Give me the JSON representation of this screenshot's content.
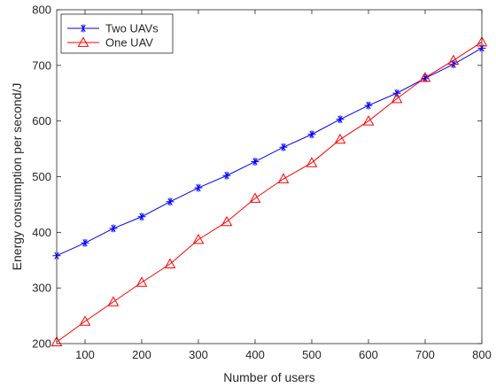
{
  "chart_data": {
    "type": "line",
    "xlabel": "Number of users",
    "ylabel": "Energy consumption per second/J",
    "xlim": [
      50,
      800
    ],
    "ylim": [
      200,
      800
    ],
    "xticks": [
      100,
      200,
      300,
      400,
      500,
      600,
      700,
      800
    ],
    "yticks": [
      200,
      300,
      400,
      500,
      600,
      700,
      800
    ],
    "grid": false,
    "legend_position": "top-left",
    "x": [
      50,
      100,
      150,
      200,
      250,
      300,
      350,
      400,
      450,
      500,
      550,
      600,
      650,
      700,
      750,
      800
    ],
    "series": [
      {
        "name": "Two UAVs",
        "color": "#0000ff",
        "marker": "asterisk",
        "values": [
          358,
          381,
          407,
          428,
          455,
          480,
          502,
          527,
          553,
          576,
          603,
          628,
          650,
          677,
          702,
          731
        ]
      },
      {
        "name": "One UAV",
        "color": "#ff0000",
        "marker": "triangle",
        "values": [
          203,
          240,
          275,
          310,
          343,
          387,
          419,
          461,
          496,
          525,
          567,
          600,
          640,
          678,
          709,
          742
        ]
      }
    ]
  }
}
